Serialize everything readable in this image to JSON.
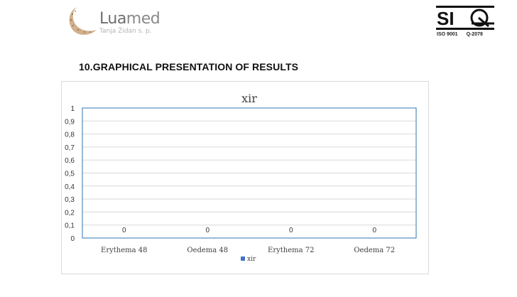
{
  "header": {
    "logo_word": "Luamed",
    "logo_word_a": "Lua",
    "logo_word_b": "med",
    "logo_sub": "Tanja Židan s. p.",
    "cert_mark": "SIQ",
    "cert_iso": "ISO 9001",
    "cert_q": "Q-2078"
  },
  "section": {
    "heading": "10.GRAPHICAL PRESENTATION OF RESULTS"
  },
  "colors": {
    "series": "#4472c4",
    "grid": "#d9d9d9",
    "plot_border": "#2e75b6"
  },
  "chart_data": {
    "type": "bar",
    "title": "xir",
    "xlabel": "",
    "ylabel": "",
    "categories": [
      "Erythema 48",
      "Oedema 48",
      "Erythema 72",
      "Oedema 72"
    ],
    "series": [
      {
        "name": "xir",
        "values": [
          0,
          0,
          0,
          0
        ]
      }
    ],
    "data_labels": [
      "0",
      "0",
      "0",
      "0"
    ],
    "ylim": [
      0,
      1
    ],
    "yticks": [
      "0",
      "0,1",
      "0,2",
      "0,3",
      "0,4",
      "0,5",
      "0,6",
      "0,7",
      "0,8",
      "0,9",
      "1"
    ],
    "grid": true,
    "legend": "bottom"
  }
}
